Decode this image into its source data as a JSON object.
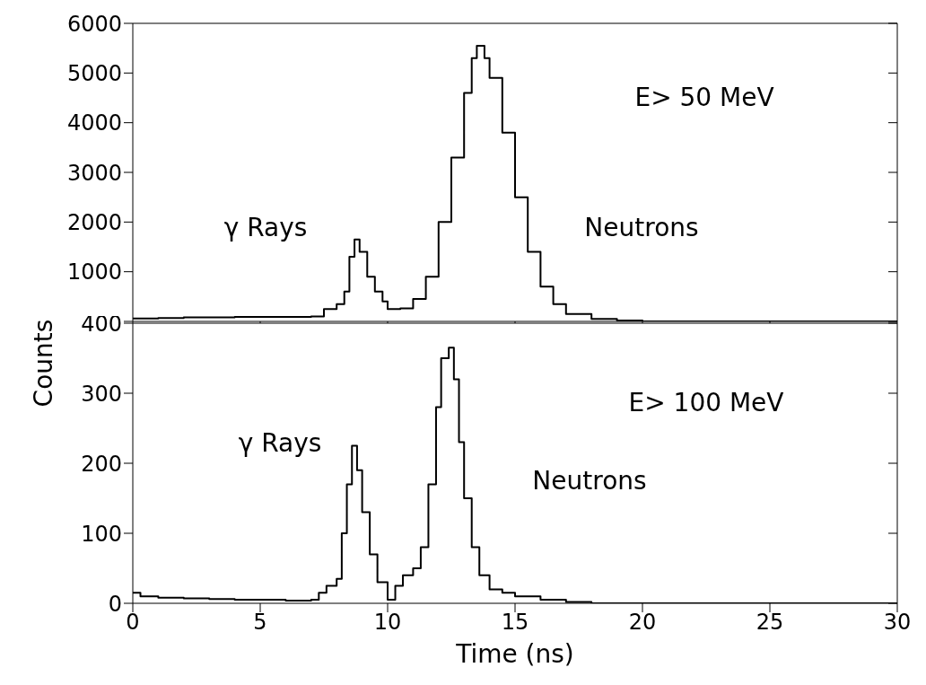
{
  "chart_data": [
    {
      "type": "step",
      "ylabel": "Counts",
      "xlim": [
        0,
        30
      ],
      "xticks": [
        0,
        5,
        10,
        15,
        20,
        25,
        30
      ],
      "ylim": [
        0,
        6000
      ],
      "yticks": [
        {
          "value": 0,
          "label": null
        },
        1000,
        2000,
        3000,
        4000,
        5000,
        6000
      ],
      "tick_labels": "y",
      "grid": false,
      "legend": false,
      "series": [
        {
          "color": "#000000",
          "x": [
            0,
            1,
            2,
            3,
            4,
            5,
            6,
            7,
            7.5,
            8,
            8.3,
            8.5,
            8.7,
            8.9,
            9.2,
            9.5,
            9.8,
            10,
            10.5,
            11,
            11.5,
            12,
            12.5,
            13,
            13.3,
            13.5,
            13.8,
            14,
            14.5,
            15,
            15.5,
            16,
            16.5,
            17,
            18,
            19,
            20,
            30
          ],
          "values": [
            60,
            70,
            80,
            80,
            90,
            90,
            90,
            100,
            250,
            350,
            600,
            1300,
            1650,
            1400,
            900,
            600,
            400,
            250,
            260,
            450,
            900,
            2000,
            3300,
            4600,
            5300,
            5550,
            5300,
            4900,
            3800,
            2500,
            1400,
            700,
            350,
            150,
            50,
            20,
            0,
            0
          ]
        }
      ],
      "annotations": [
        "γ Rays",
        "Neutrons",
        "E> 50 MeV"
      ]
    },
    {
      "type": "step",
      "xlabel": "Time (ns)",
      "xlim": [
        0,
        30
      ],
      "xticks": [
        0,
        5,
        10,
        15,
        20,
        25,
        30
      ],
      "ylim": [
        0,
        400
      ],
      "yticks": [
        0,
        100,
        200,
        300,
        400
      ],
      "grid": false,
      "legend": false,
      "series": [
        {
          "color": "#000000",
          "x": [
            0,
            0.3,
            1,
            2,
            3,
            4,
            5,
            6,
            7,
            7.3,
            7.6,
            8,
            8.2,
            8.4,
            8.6,
            8.8,
            9,
            9.3,
            9.6,
            10,
            10.3,
            10.6,
            11,
            11.3,
            11.6,
            11.9,
            12.1,
            12.4,
            12.6,
            12.8,
            13,
            13.3,
            13.6,
            14,
            14.5,
            15,
            16,
            17,
            18,
            30
          ],
          "values": [
            15,
            10,
            8,
            7,
            6,
            5,
            5,
            4,
            5,
            15,
            25,
            35,
            100,
            170,
            225,
            190,
            130,
            70,
            30,
            5,
            25,
            40,
            50,
            80,
            170,
            280,
            350,
            365,
            320,
            230,
            150,
            80,
            40,
            20,
            15,
            10,
            5,
            2,
            0,
            0
          ]
        }
      ],
      "annotations": [
        "γ Rays",
        "Neutrons",
        "E> 100 MeV"
      ]
    }
  ]
}
